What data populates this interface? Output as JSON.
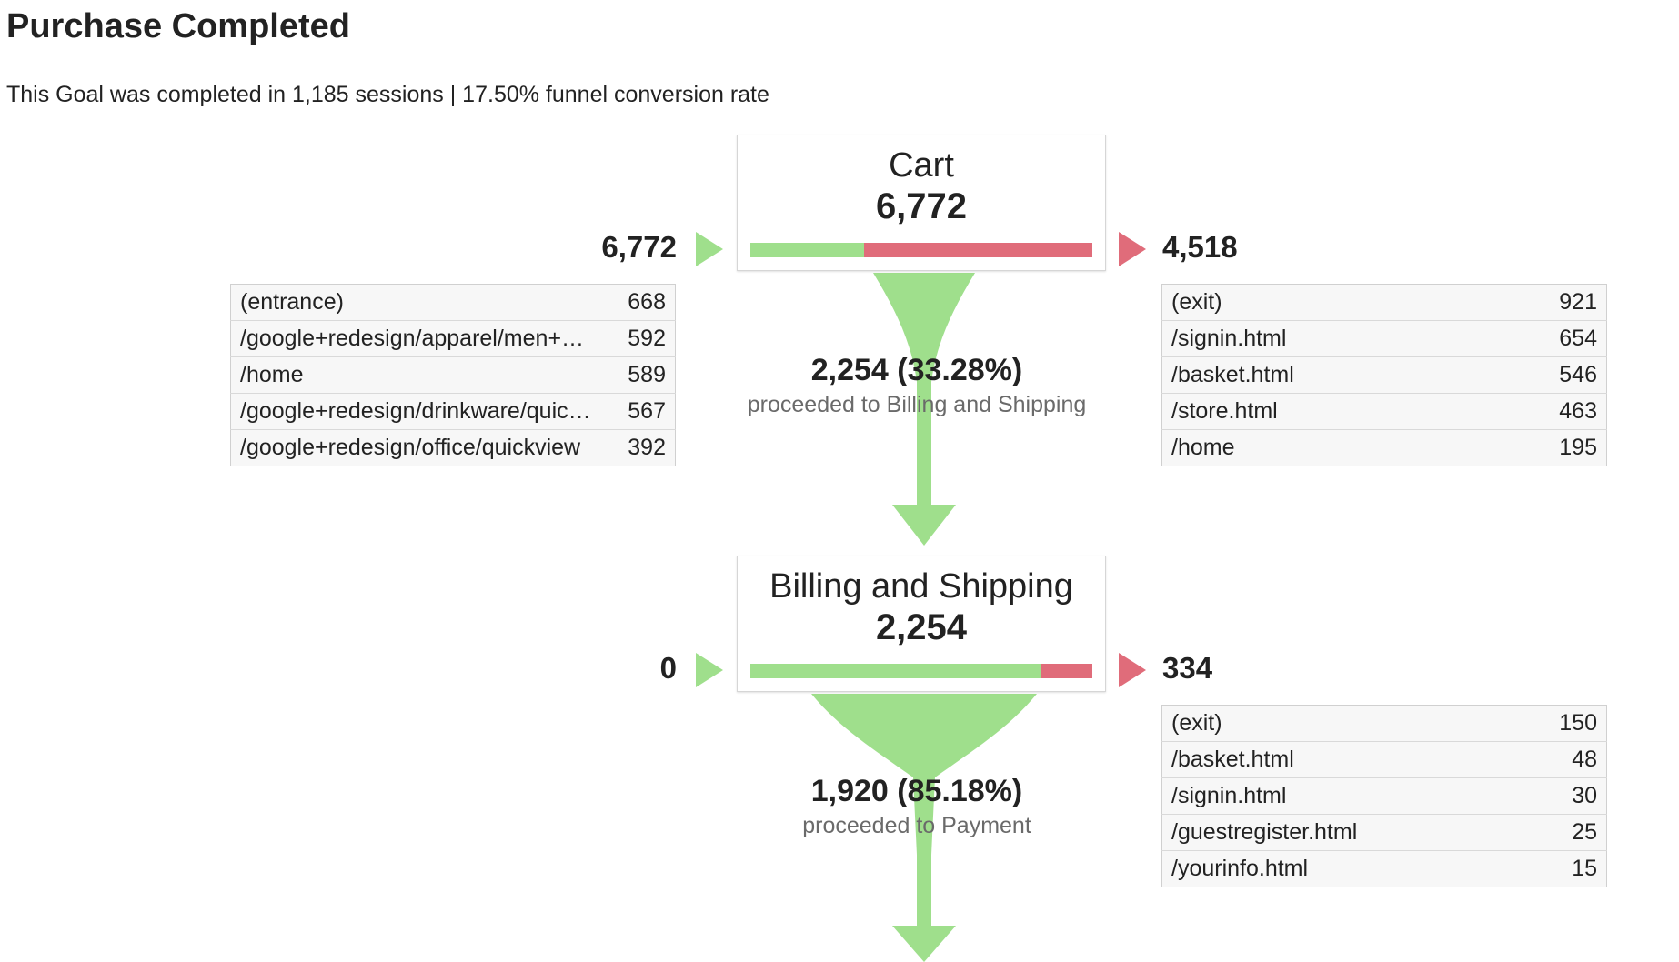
{
  "title": "Purchase Completed",
  "summary": "This Goal was completed in 1,185 sessions | 17.50% funnel conversion rate",
  "colors": {
    "green": "#9fdf8c",
    "red": "#e06c7a"
  },
  "steps": [
    {
      "name": "Cart",
      "count": "6,772",
      "entered": "6,772",
      "exited": "4,518",
      "continue_fraction": 0.3328,
      "entrances": [
        {
          "page": "(entrance)",
          "value": "668"
        },
        {
          "page": "/google+redesign/apparel/men++s...",
          "value": "592"
        },
        {
          "page": "/home",
          "value": "589"
        },
        {
          "page": "/google+redesign/drinkware/quick...",
          "value": "567"
        },
        {
          "page": "/google+redesign/office/quickview",
          "value": "392"
        }
      ],
      "exits": [
        {
          "page": "(exit)",
          "value": "921"
        },
        {
          "page": "/signin.html",
          "value": "654"
        },
        {
          "page": "/basket.html",
          "value": "546"
        },
        {
          "page": "/store.html",
          "value": "463"
        },
        {
          "page": "/home",
          "value": "195"
        }
      ],
      "conversion": {
        "value": "2,254 (33.28%)",
        "label": "proceeded to Billing and Shipping"
      }
    },
    {
      "name": "Billing and Shipping",
      "count": "2,254",
      "entered": "0",
      "exited": "334",
      "continue_fraction": 0.8518,
      "exits": [
        {
          "page": "(exit)",
          "value": "150"
        },
        {
          "page": "/basket.html",
          "value": "48"
        },
        {
          "page": "/signin.html",
          "value": "30"
        },
        {
          "page": "/guestregister.html",
          "value": "25"
        },
        {
          "page": "/yourinfo.html",
          "value": "15"
        }
      ],
      "conversion": {
        "value": "1,920 (85.18%)",
        "label": "proceeded to Payment"
      }
    }
  ]
}
